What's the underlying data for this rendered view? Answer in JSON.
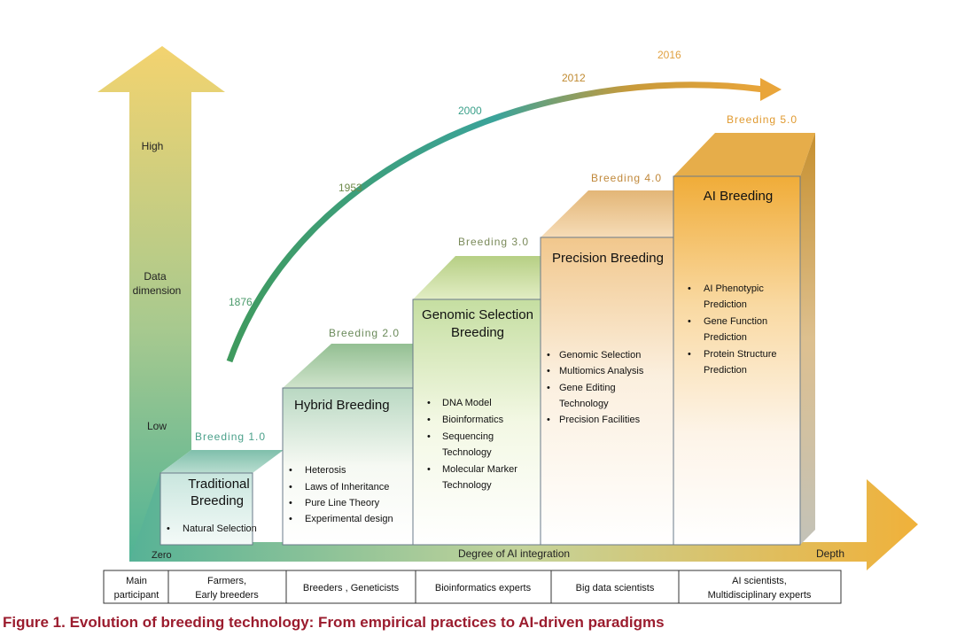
{
  "y_axis": {
    "high_label": "High",
    "dimension_label": [
      "Data",
      "dimension"
    ],
    "low_label": "Low"
  },
  "x_axis": {
    "zero_label": "Zero",
    "title": "Degree of AI integration",
    "depth_label": "Depth"
  },
  "timeline": {
    "years": [
      "1876",
      "1953",
      "2000",
      "2012",
      "2016"
    ],
    "colors": [
      "#4a9a6a",
      "#6e8a4a",
      "#3aa08a",
      "#c08a30",
      "#e0a040"
    ]
  },
  "stages": [
    {
      "stage_label": "Breeding 1.0",
      "title": [
        "Traditional",
        "Breeding"
      ],
      "items": [
        "Natural Selection"
      ]
    },
    {
      "stage_label": "Breeding 2.0",
      "title": [
        "Hybrid Breeding"
      ],
      "items": [
        "Heterosis",
        "Laws of Inheritance",
        "Pure Line Theory",
        "Experimental design"
      ]
    },
    {
      "stage_label": "Breeding 3.0",
      "title": [
        "Genomic Selection",
        "Breeding"
      ],
      "items": [
        "DNA Model",
        "Bioinformatics",
        "Sequencing",
        "Technology",
        "Molecular Marker",
        "Technology"
      ]
    },
    {
      "stage_label": "Breeding 4.0",
      "title": [
        "Precision Breeding"
      ],
      "items": [
        "Genomic Selection",
        "Multiomics Analysis",
        "Gene Editing",
        "Technology",
        "Precision Facilities"
      ]
    },
    {
      "stage_label": "Breeding 5.0",
      "title": [
        "AI Breeding"
      ],
      "items": [
        "AI Phenotypic",
        "Prediction",
        "Gene Function",
        "Prediction",
        "Protein Structure",
        "Prediction"
      ]
    }
  ],
  "participants": {
    "header": [
      "Main",
      "participant"
    ],
    "cells": [
      [
        "Farmers,",
        "Early breeders"
      ],
      [
        "Breeders , Geneticists"
      ],
      [
        "Bioinformatics experts"
      ],
      [
        "Big data scientists"
      ],
      [
        "AI scientists,",
        "Multidisciplinary experts"
      ]
    ]
  },
  "caption": "Figure 1. Evolution of breeding technology: From empirical practices to AI-driven paradigms"
}
